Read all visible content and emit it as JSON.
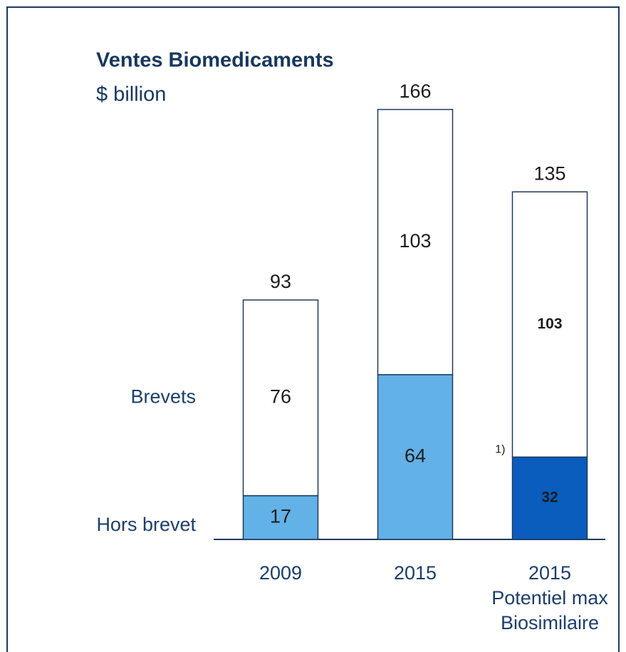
{
  "chart_data": {
    "type": "stacked_bar",
    "title": "Ventes Biomedicaments",
    "subtitle": "$ billion",
    "categories": [
      "2009",
      "2015",
      "2015\nPotentiel max\nBiosimilaire"
    ],
    "series": [
      {
        "name": "Hors brevet",
        "values": [
          17,
          64,
          32
        ],
        "colors": [
          "#62b1e7",
          "#62b1e7",
          "#0a5cbd"
        ]
      },
      {
        "name": "Brevets",
        "values": [
          76,
          103,
          103
        ],
        "colors": [
          "#ffffff",
          "#ffffff",
          "#ffffff"
        ]
      }
    ],
    "totals": [
      93,
      166,
      135
    ],
    "label_bold": [
      false,
      false,
      true
    ],
    "annotations": [
      {
        "text": "1)",
        "category": 2
      }
    ]
  }
}
